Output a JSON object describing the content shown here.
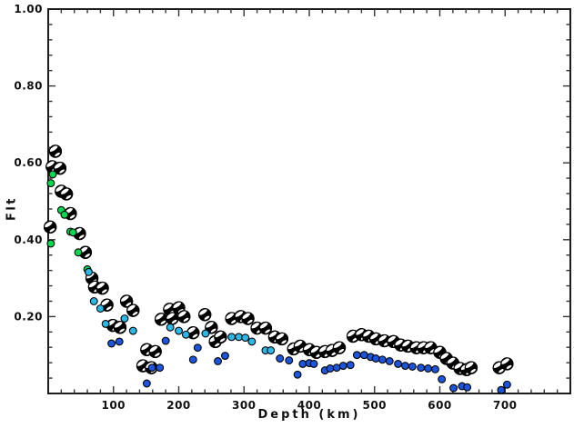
{
  "figure": {
    "background": "#ffffff",
    "frame_color": "#1c1c1c",
    "tick_color": "#333333"
  },
  "chart_data": {
    "type": "scatter",
    "title": "",
    "xlabel": "Depth (km)",
    "ylabel": "Flt",
    "xlim": [
      0,
      800
    ],
    "ylim": [
      0,
      1.0
    ],
    "grid": false,
    "legend": "none",
    "x_major_ticks": [
      100,
      200,
      300,
      400,
      500,
      600,
      700
    ],
    "x_major_tick_labels": [
      "100",
      "200",
      "300",
      "400",
      "500",
      "600",
      "700"
    ],
    "x_minor_step": 20,
    "y_major_ticks": [
      0.2,
      0.4,
      0.6,
      0.8,
      1.0
    ],
    "y_major_tick_labels": [
      "0.20",
      "0.40",
      "0.60",
      "0.80",
      "1.00"
    ],
    "y_minor_step": 0.04,
    "series": [
      {
        "name": "focal-mechanism-beachballs",
        "marker": "beachball",
        "color": "#000000",
        "points": [
          [
            3,
            0.433
          ],
          [
            6,
            0.59
          ],
          [
            11,
            0.63
          ],
          [
            18,
            0.586
          ],
          [
            20,
            0.526
          ],
          [
            28,
            0.519
          ],
          [
            34,
            0.468
          ],
          [
            48,
            0.416
          ],
          [
            57,
            0.367
          ],
          [
            67,
            0.3
          ],
          [
            71,
            0.277
          ],
          [
            83,
            0.274
          ],
          [
            90,
            0.23
          ],
          [
            99,
            0.177
          ],
          [
            110,
            0.172
          ],
          [
            120,
            0.24
          ],
          [
            130,
            0.216
          ],
          [
            145,
            0.072
          ],
          [
            151,
            0.114
          ],
          [
            158,
            0.067
          ],
          [
            164,
            0.109
          ],
          [
            173,
            0.193
          ],
          [
            186,
            0.219
          ],
          [
            190,
            0.195
          ],
          [
            200,
            0.223
          ],
          [
            208,
            0.2
          ],
          [
            222,
            0.158
          ],
          [
            240,
            0.205
          ],
          [
            250,
            0.172
          ],
          [
            256,
            0.135
          ],
          [
            264,
            0.147
          ],
          [
            281,
            0.195
          ],
          [
            295,
            0.2
          ],
          [
            306,
            0.195
          ],
          [
            320,
            0.17
          ],
          [
            333,
            0.17
          ],
          [
            347,
            0.147
          ],
          [
            358,
            0.142
          ],
          [
            376,
            0.116
          ],
          [
            386,
            0.123
          ],
          [
            400,
            0.114
          ],
          [
            411,
            0.107
          ],
          [
            424,
            0.109
          ],
          [
            435,
            0.112
          ],
          [
            446,
            0.119
          ],
          [
            467,
            0.149
          ],
          [
            480,
            0.153
          ],
          [
            491,
            0.149
          ],
          [
            502,
            0.142
          ],
          [
            515,
            0.137
          ],
          [
            529,
            0.135
          ],
          [
            540,
            0.126
          ],
          [
            551,
            0.123
          ],
          [
            564,
            0.119
          ],
          [
            575,
            0.119
          ],
          [
            586,
            0.119
          ],
          [
            600,
            0.107
          ],
          [
            610,
            0.091
          ],
          [
            620,
            0.079
          ],
          [
            631,
            0.065
          ],
          [
            641,
            0.062
          ],
          [
            648,
            0.067
          ],
          [
            691,
            0.067
          ],
          [
            703,
            0.077
          ]
        ]
      },
      {
        "name": "green-dots",
        "marker": "circle",
        "color": "#00d94f",
        "points": [
          [
            4,
            0.547
          ],
          [
            4,
            0.39
          ],
          [
            7,
            0.57
          ],
          [
            20,
            0.477
          ],
          [
            25,
            0.465
          ],
          [
            34,
            0.421
          ],
          [
            38,
            0.419
          ],
          [
            46,
            0.367
          ],
          [
            60,
            0.323
          ]
        ]
      },
      {
        "name": "cyan-dots",
        "marker": "circle",
        "color": "#2ab8e8",
        "points": [
          [
            62,
            0.316
          ],
          [
            70,
            0.24
          ],
          [
            80,
            0.221
          ],
          [
            88,
            0.181
          ],
          [
            117,
            0.195
          ],
          [
            130,
            0.163
          ],
          [
            187,
            0.172
          ],
          [
            200,
            0.163
          ],
          [
            211,
            0.153
          ],
          [
            241,
            0.156
          ],
          [
            281,
            0.147
          ],
          [
            292,
            0.147
          ],
          [
            302,
            0.145
          ],
          [
            312,
            0.135
          ],
          [
            333,
            0.112
          ],
          [
            341,
            0.112
          ]
        ]
      },
      {
        "name": "blue-dots",
        "marker": "circle",
        "color": "#1b55dd",
        "points": [
          [
            97,
            0.13
          ],
          [
            109,
            0.135
          ],
          [
            151,
            0.026
          ],
          [
            159,
            0.067
          ],
          [
            171,
            0.067
          ],
          [
            180,
            0.137
          ],
          [
            222,
            0.088
          ],
          [
            229,
            0.119
          ],
          [
            260,
            0.084
          ],
          [
            271,
            0.098
          ],
          [
            355,
            0.091
          ],
          [
            369,
            0.086
          ],
          [
            382,
            0.049
          ],
          [
            390,
            0.077
          ],
          [
            400,
            0.079
          ],
          [
            407,
            0.077
          ],
          [
            424,
            0.06
          ],
          [
            432,
            0.065
          ],
          [
            442,
            0.067
          ],
          [
            452,
            0.072
          ],
          [
            463,
            0.074
          ],
          [
            473,
            0.1
          ],
          [
            484,
            0.1
          ],
          [
            494,
            0.095
          ],
          [
            502,
            0.091
          ],
          [
            512,
            0.088
          ],
          [
            523,
            0.084
          ],
          [
            536,
            0.077
          ],
          [
            547,
            0.072
          ],
          [
            558,
            0.07
          ],
          [
            571,
            0.067
          ],
          [
            582,
            0.065
          ],
          [
            593,
            0.063
          ],
          [
            603,
            0.037
          ],
          [
            621,
            0.014
          ],
          [
            634,
            0.019
          ],
          [
            642,
            0.016
          ],
          [
            694,
            0.009
          ],
          [
            703,
            0.023
          ]
        ]
      }
    ]
  }
}
